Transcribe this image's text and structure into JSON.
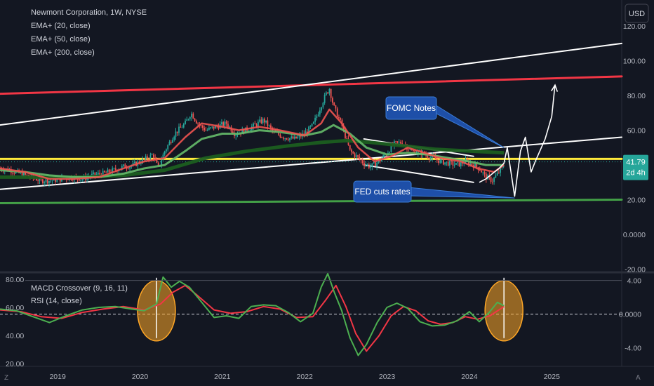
{
  "chart_data": [
    {
      "type": "candlestick",
      "title": "Newmont Corporation, 1W, NYSE",
      "indicators": [
        "EMA+ (20, close)",
        "EMA+ (50, close)",
        "EMA+ (200, close)"
      ],
      "currency_button": "USD",
      "last_price": "41.79",
      "countdown": "2d 4h",
      "yticks": [
        120,
        100,
        80,
        60,
        40,
        20,
        0,
        -20
      ],
      "ytick_labels": [
        "120.00",
        "100.00",
        "80.00",
        "60.00",
        "40.00",
        "20.00",
        "0.0000",
        "-20.00"
      ],
      "xticks": [
        2019,
        2020,
        2021,
        2022,
        2023,
        2024,
        2025
      ],
      "ylim": [
        -21,
        135
      ],
      "xlim": [
        2018.3,
        2025.85
      ],
      "grid": false,
      "price_points": {
        "x": [
          2018.3,
          2018.42,
          2018.55,
          2018.68,
          2018.8,
          2018.92,
          2019.05,
          2019.18,
          2019.3,
          2019.42,
          2019.55,
          2019.68,
          2019.8,
          2019.92,
          2020.05,
          2020.16,
          2020.22,
          2020.3,
          2020.42,
          2020.55,
          2020.62,
          2020.7,
          2020.8,
          2020.92,
          2021.05,
          2021.15,
          2021.28,
          2021.4,
          2021.5,
          2021.62,
          2021.75,
          2021.88,
          2022.0,
          2022.1,
          2022.18,
          2022.25,
          2022.3,
          2022.35,
          2022.45,
          2022.55,
          2022.65,
          2022.72,
          2022.8,
          2022.9,
          2023.0,
          2023.08,
          2023.18,
          2023.3,
          2023.42,
          2023.55,
          2023.65,
          2023.75,
          2023.85,
          2023.95,
          2024.05,
          2024.12,
          2024.2,
          2024.28,
          2024.36,
          2024.42
        ],
        "close": [
          38,
          37,
          35,
          33,
          31,
          31,
          32,
          33,
          32,
          34,
          35,
          37,
          39,
          40,
          43,
          46,
          38,
          48,
          58,
          64,
          70,
          64,
          60,
          62,
          64,
          58,
          60,
          63,
          66,
          59,
          56,
          55,
          58,
          63,
          72,
          80,
          84,
          74,
          63,
          48,
          44,
          41,
          39,
          42,
          47,
          52,
          53,
          48,
          47,
          44,
          42,
          41,
          40,
          42,
          40,
          38,
          33,
          31,
          36,
          40
        ]
      },
      "ema_20": {
        "x": [
          2018.3,
          2018.6,
          2018.9,
          2019.2,
          2019.5,
          2019.8,
          2020.05,
          2020.3,
          2020.55,
          2020.75,
          2021.0,
          2021.2,
          2021.45,
          2021.7,
          2022.0,
          2022.2,
          2022.3,
          2022.45,
          2022.65,
          2022.85,
          2023.05,
          2023.25,
          2023.45,
          2023.65,
          2023.9,
          2024.1,
          2024.3,
          2024.42
        ],
        "y": [
          38,
          36,
          32,
          32,
          33,
          38,
          42,
          44,
          56,
          64,
          62,
          60,
          62,
          60,
          57,
          64,
          72,
          64,
          50,
          42,
          45,
          50,
          47,
          44,
          42,
          38,
          36,
          40
        ]
      },
      "ema_50": {
        "x": [
          2018.3,
          2018.6,
          2018.9,
          2019.2,
          2019.5,
          2019.8,
          2020.05,
          2020.3,
          2020.55,
          2020.75,
          2021.0,
          2021.2,
          2021.45,
          2021.7,
          2022.0,
          2022.2,
          2022.35,
          2022.55,
          2022.75,
          2023.0,
          2023.25,
          2023.5,
          2023.75,
          2024.0,
          2024.2,
          2024.42
        ],
        "y": [
          37,
          36,
          34,
          33,
          33,
          35,
          38,
          40,
          48,
          55,
          58,
          58,
          60,
          59,
          57,
          59,
          63,
          58,
          50,
          46,
          47,
          46,
          44,
          42,
          40,
          40
        ]
      },
      "ema_200": {
        "x": [
          2018.3,
          2018.8,
          2019.3,
          2019.8,
          2020.3,
          2020.8,
          2021.3,
          2021.8,
          2022.2,
          2022.5,
          2022.8,
          2023.2,
          2023.6,
          2024.0,
          2024.42
        ],
        "y": [
          33,
          33,
          33,
          34,
          37,
          44,
          48,
          51,
          53,
          54,
          53,
          51,
          49,
          48,
          47
        ]
      },
      "support_resistance_lines": [
        {
          "color": "#f23645",
          "x": [
            2018.3,
            2025.85
          ],
          "y": [
            81,
            91
          ]
        },
        {
          "color": "#ffeb3b",
          "x": [
            2018.3,
            2025.85
          ],
          "y": [
            43.5,
            43.5
          ]
        },
        {
          "color": "#43a047",
          "x": [
            2018.3,
            2025.85
          ],
          "y": [
            18,
            20
          ]
        },
        {
          "color": "#ffffff",
          "x": [
            2018.3,
            2025.85
          ],
          "y": [
            63,
            110
          ]
        },
        {
          "color": "#ffffff",
          "x": [
            2018.3,
            2025.85
          ],
          "y": [
            26,
            56
          ]
        },
        {
          "color": "#ffffff",
          "x": [
            2022.72,
            2024.05
          ],
          "y": [
            55,
            45
          ]
        },
        {
          "color": "#ffffff",
          "x": [
            2022.72,
            2024.05
          ],
          "y": [
            40,
            30
          ]
        }
      ],
      "projection_path": {
        "x": [
          2024.12,
          2024.2,
          2024.28,
          2024.36,
          2024.42,
          2024.46,
          2024.55,
          2024.62,
          2024.68,
          2024.75,
          2024.8,
          2024.92,
          2025.0,
          2025.04
        ],
        "y": [
          30,
          32,
          35,
          38,
          41,
          50,
          22,
          48,
          56,
          36,
          42,
          55,
          68,
          86
        ]
      },
      "annotations": [
        {
          "text": "FOMC Notes",
          "anchor_x": 2024.42,
          "anchor_y": 50
        },
        {
          "text": "FED cuts rates",
          "anchor_x": 2024.55,
          "anchor_y": 21
        }
      ]
    },
    {
      "type": "line",
      "indicators": [
        "MACD Crossover (9, 16, 11)",
        "RSI (14, close)"
      ],
      "left_axis_labels": [
        "80.00",
        "60.00",
        "40.00",
        "20.00"
      ],
      "left_axis_values": [
        80,
        60,
        40,
        20
      ],
      "right_axis_labels": [
        "4.00",
        "0.0000",
        "-4.00"
      ],
      "right_axis_values": [
        4,
        0,
        -4
      ],
      "zero_line": 0,
      "ylim": [
        -6.2,
        4.8
      ],
      "xlim": [
        2018.3,
        2025.85
      ],
      "macd_green": {
        "x": [
          2018.3,
          2018.5,
          2018.7,
          2018.9,
          2019.1,
          2019.3,
          2019.5,
          2019.7,
          2019.9,
          2020.05,
          2020.2,
          2020.28,
          2020.38,
          2020.48,
          2020.6,
          2020.75,
          2020.9,
          2021.05,
          2021.2,
          2021.35,
          2021.5,
          2021.65,
          2021.8,
          2021.95,
          2022.1,
          2022.2,
          2022.28,
          2022.36,
          2022.45,
          2022.55,
          2022.65,
          2022.75,
          2022.88,
          2023.0,
          2023.12,
          2023.25,
          2023.4,
          2023.55,
          2023.7,
          2023.85,
          2024.0,
          2024.12,
          2024.24,
          2024.34,
          2024.42
        ],
        "y": [
          0.6,
          0.4,
          -0.3,
          -1.0,
          -0.2,
          0.5,
          0.8,
          0.9,
          0.6,
          0.4,
          1.2,
          4.4,
          3.2,
          3.9,
          3.2,
          1.4,
          -0.4,
          -0.2,
          -0.5,
          0.9,
          1.1,
          1.0,
          0.2,
          -0.9,
          0.1,
          3.2,
          4.8,
          2.6,
          0.4,
          -2.8,
          -4.9,
          -3.6,
          -1.0,
          0.8,
          1.3,
          0.7,
          -0.9,
          -1.4,
          -1.3,
          -0.8,
          0.3,
          -0.9,
          0.2,
          1.4,
          1.0
        ]
      },
      "macd_red": {
        "x": [
          2018.3,
          2018.55,
          2018.8,
          2019.05,
          2019.3,
          2019.55,
          2019.8,
          2020.05,
          2020.25,
          2020.4,
          2020.55,
          2020.7,
          2020.9,
          2021.1,
          2021.3,
          2021.5,
          2021.7,
          2021.9,
          2022.1,
          2022.25,
          2022.38,
          2022.5,
          2022.62,
          2022.75,
          2022.9,
          2023.05,
          2023.2,
          2023.35,
          2023.5,
          2023.65,
          2023.8,
          2023.95,
          2024.1,
          2024.25,
          2024.42
        ],
        "y": [
          0.5,
          0.3,
          -0.3,
          -0.5,
          0.2,
          0.6,
          0.9,
          0.5,
          1.2,
          2.6,
          3.4,
          2.2,
          0.5,
          0.1,
          0.3,
          0.9,
          0.6,
          -0.4,
          -0.3,
          1.6,
          3.4,
          0.9,
          -2.3,
          -4.4,
          -2.6,
          -0.2,
          0.9,
          0.4,
          -0.8,
          -1.2,
          -1.0,
          -0.3,
          -0.6,
          -0.2,
          0.9
        ]
      },
      "highlight_ellipses": [
        {
          "x": 2020.2,
          "y": 0.4
        },
        {
          "x": 2024.42,
          "y": 0.4
        }
      ]
    }
  ],
  "footer": {
    "corner_left": "Z",
    "corner_right": "A"
  }
}
